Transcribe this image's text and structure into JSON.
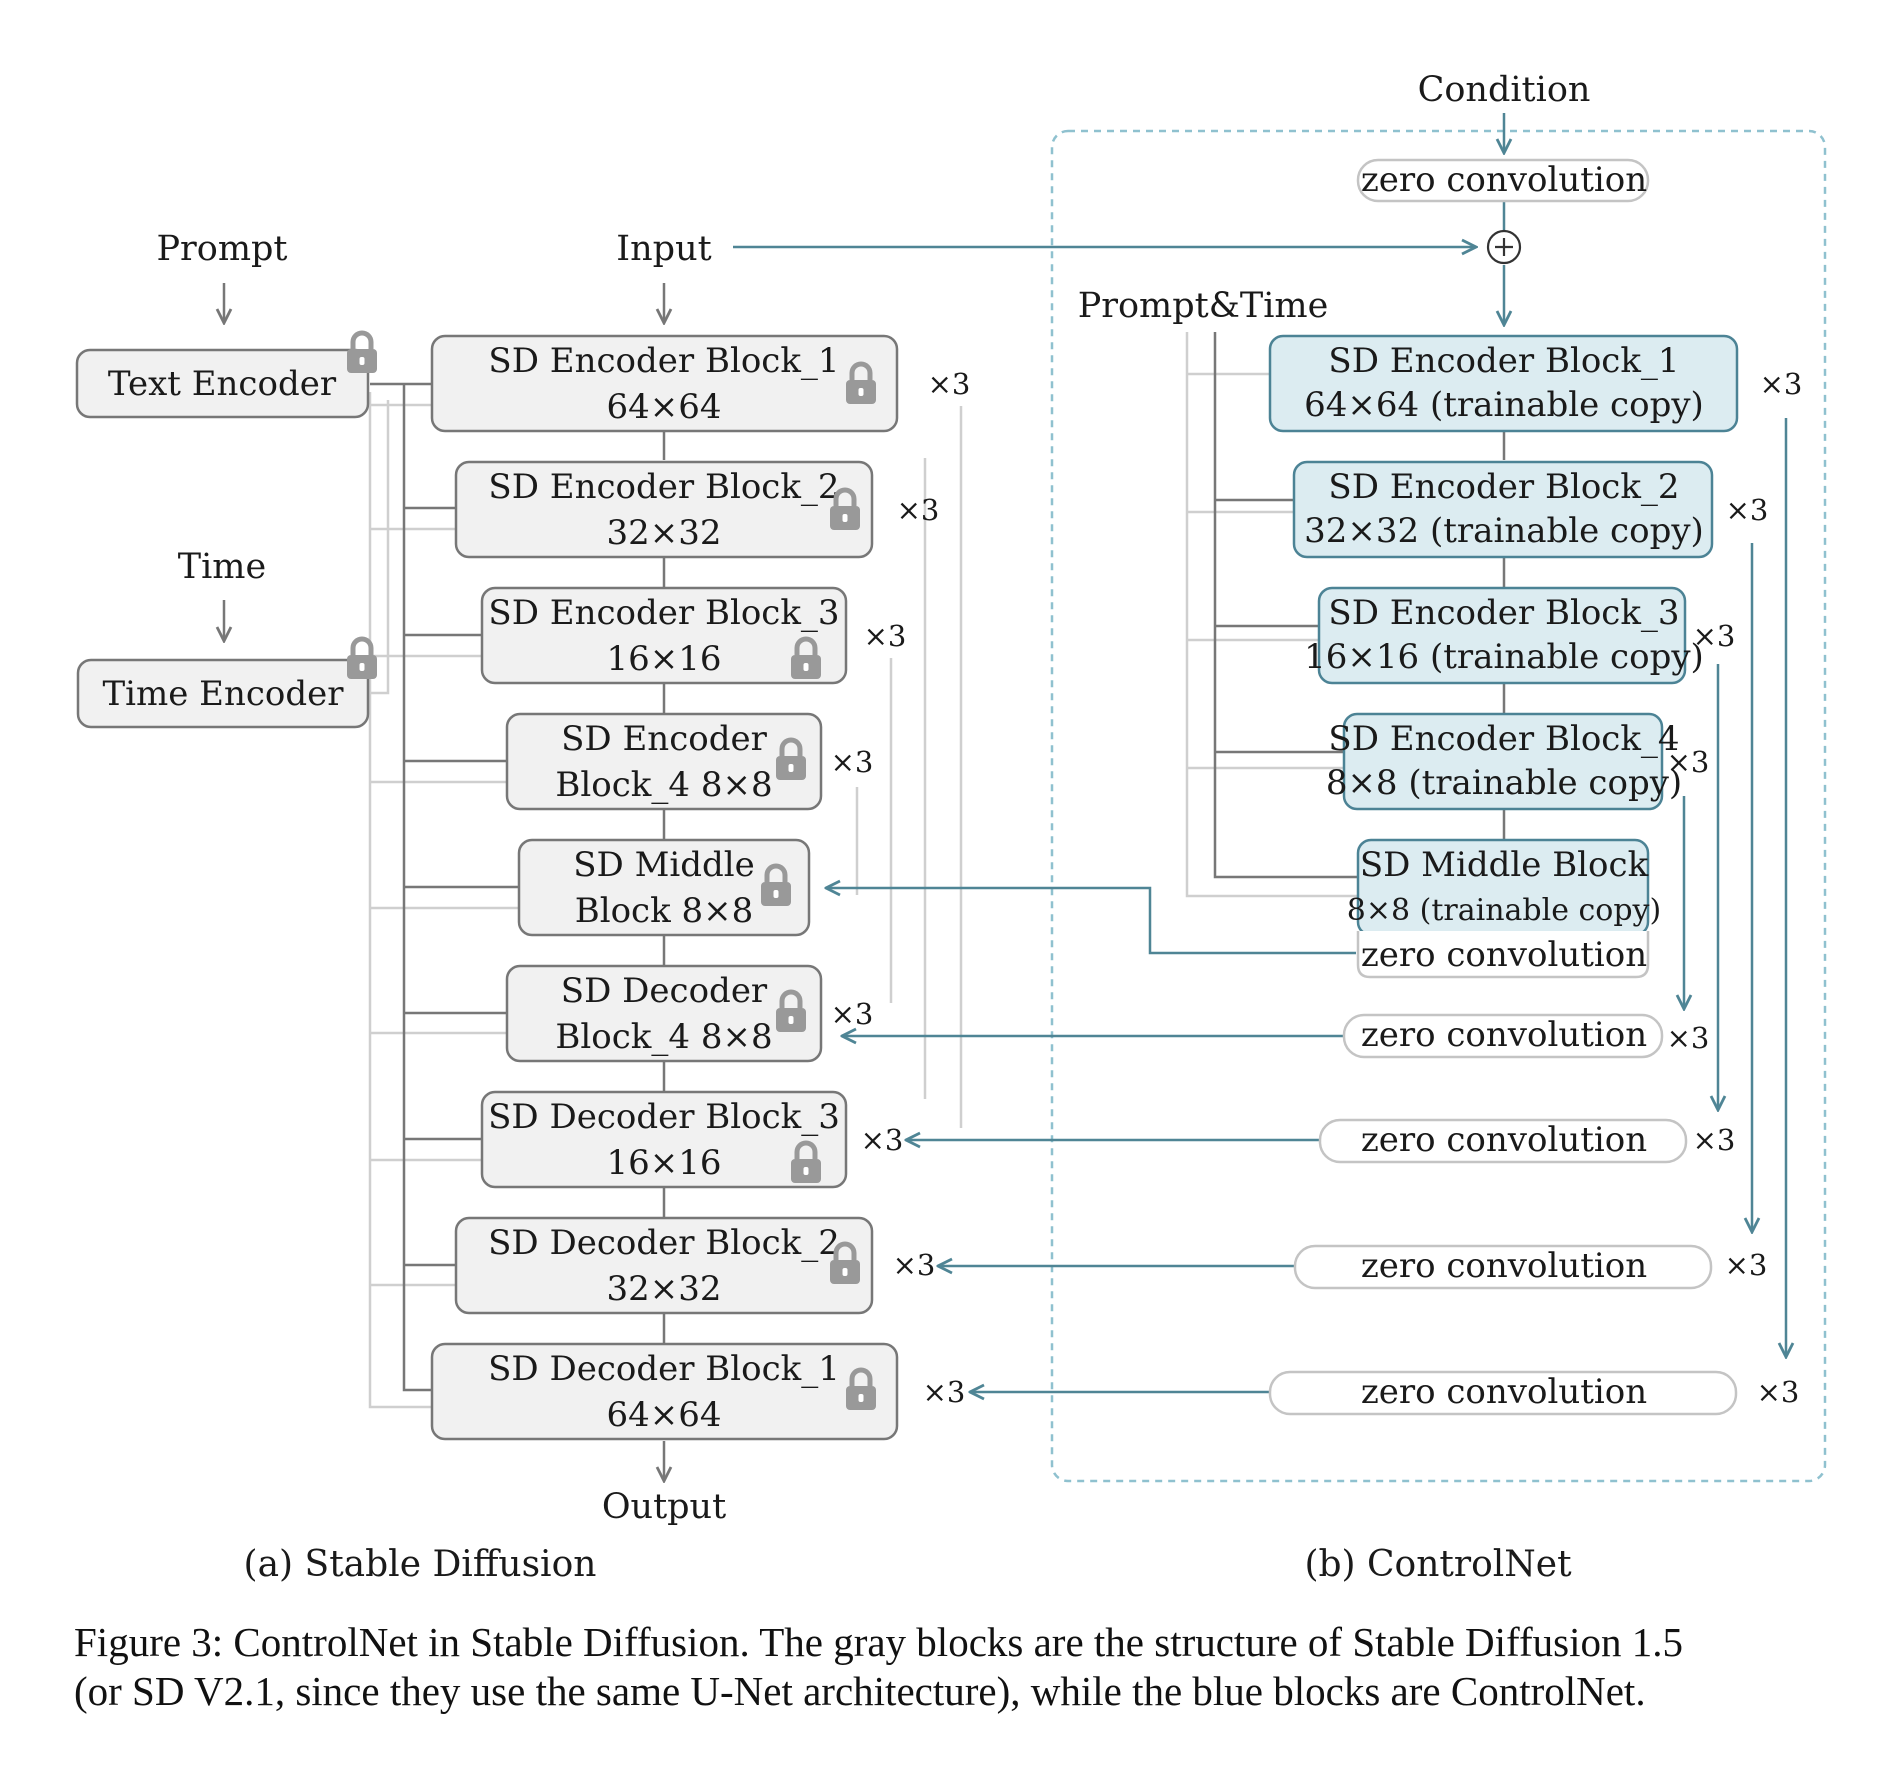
{
  "inputs": {
    "prompt": "Prompt",
    "input": "Input",
    "time": "Time",
    "condition": "Condition",
    "prompt_time": "Prompt&Time",
    "output": "Output"
  },
  "encoders": {
    "text": "Text Encoder",
    "time": "Time Encoder"
  },
  "sd_blocks": [
    {
      "line1": "SD Encoder Block_1",
      "line2": "64×64"
    },
    {
      "line1": "SD Encoder Block_2",
      "line2": "32×32"
    },
    {
      "line1": "SD Encoder Block_3",
      "line2": "16×16"
    },
    {
      "line1": "SD Encoder",
      "line2": "Block_4 8×8"
    },
    {
      "line1": "SD Middle",
      "line2": "Block 8×8"
    },
    {
      "line1": "SD Decoder",
      "line2": "Block_4 8×8"
    },
    {
      "line1": "SD Decoder Block_3",
      "line2": "16×16"
    },
    {
      "line1": "SD Decoder Block_2",
      "line2": "32×32"
    },
    {
      "line1": "SD Decoder Block_1",
      "line2": "64×64"
    }
  ],
  "cn_blocks": [
    {
      "line1": "SD Encoder Block_1",
      "line2": "64×64 (trainable copy)"
    },
    {
      "line1": "SD Encoder Block_2",
      "line2": "32×32 (trainable copy)"
    },
    {
      "line1": "SD Encoder Block_3",
      "line2": "16×16 (trainable copy)"
    },
    {
      "line1": "SD Encoder Block_4",
      "line2": "8×8 (trainable copy)"
    },
    {
      "line1": "SD Middle Block",
      "line2": "8×8 (trainable copy)"
    }
  ],
  "zero_conv_label": "zero convolution",
  "repeat_label": "×3",
  "subtitles": {
    "a": "(a) Stable Diffusion",
    "b": "(b) ControlNet"
  },
  "caption": {
    "line1": "Figure 3: ControlNet in Stable Diffusion. The gray blocks are the structure of Stable Diffusion 1.5",
    "line2": "(or SD V2.1, since they use the same U-Net architecture), while the blue blocks are ControlNet."
  },
  "colors": {
    "gray_fill": "#f1f1f1",
    "gray_stroke": "#777777",
    "blue_fill": "#dcecf1",
    "blue_stroke": "#4c8395",
    "arrow_teal": "#4f8595",
    "light_line": "#cfcfcf"
  }
}
